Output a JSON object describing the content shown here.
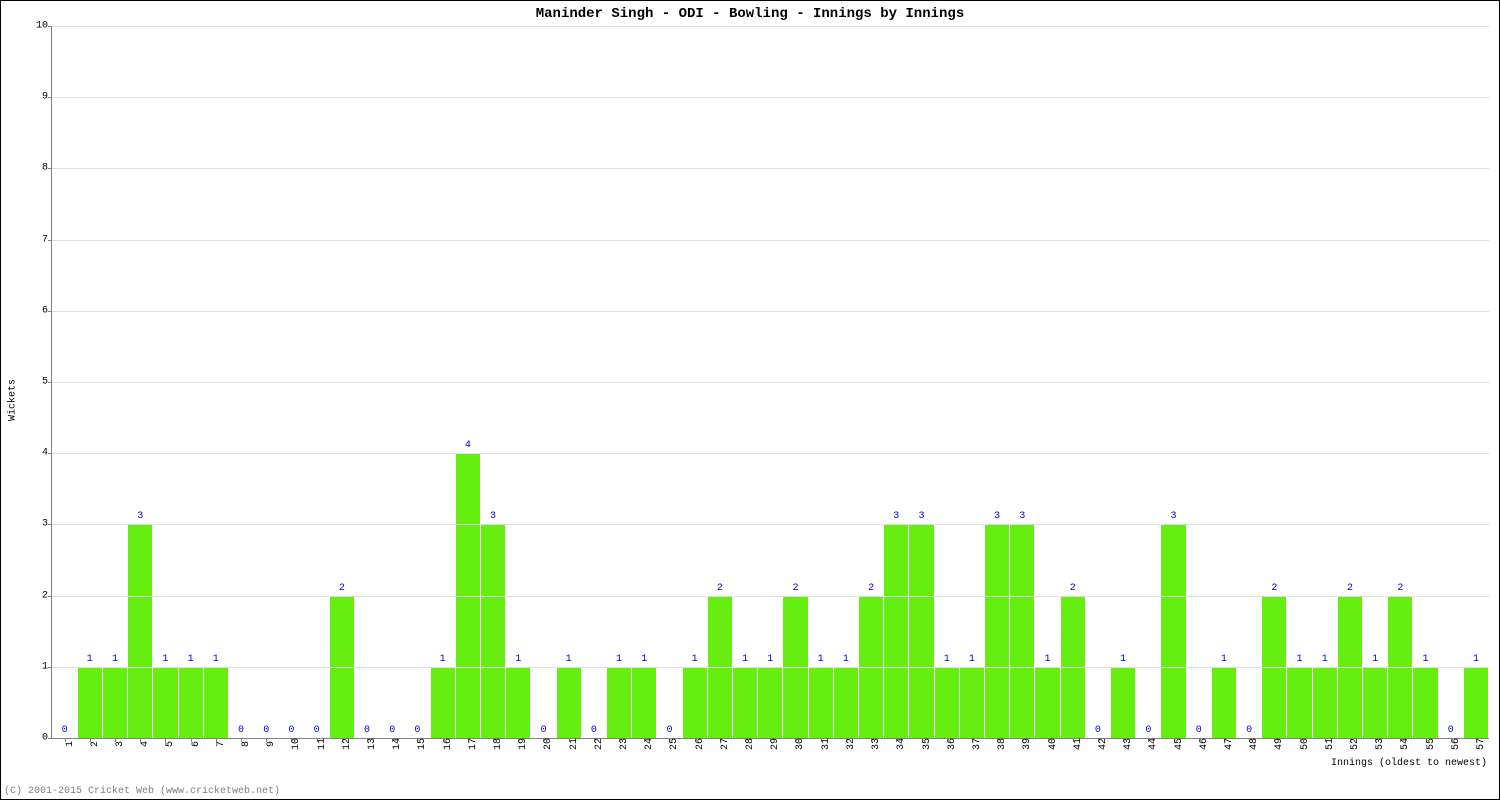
{
  "chart": {
    "type": "bar",
    "title": "Maninder Singh - ODI - Bowling - Innings by Innings",
    "title_fontsize": 14,
    "xlabel": "Innings (oldest to newest)",
    "ylabel": "Wickets",
    "label_fontsize": 10,
    "tick_fontsize": 10,
    "ylim": [
      0,
      10
    ],
    "ytick_step": 1,
    "background_color": "#ffffff",
    "grid_color": "#dddddd",
    "axis_color": "#808080",
    "bar_color": "#66ee11",
    "value_label_color": "#0000cc",
    "bar_width_ratio": 0.96,
    "categories": [
      "1",
      "2",
      "3",
      "4",
      "5",
      "6",
      "7",
      "8",
      "9",
      "10",
      "11",
      "12",
      "13",
      "14",
      "15",
      "16",
      "17",
      "18",
      "19",
      "20",
      "21",
      "22",
      "23",
      "24",
      "25",
      "26",
      "27",
      "28",
      "29",
      "30",
      "31",
      "32",
      "33",
      "34",
      "35",
      "36",
      "37",
      "38",
      "39",
      "40",
      "41",
      "42",
      "43",
      "44",
      "45",
      "46",
      "47",
      "48",
      "49",
      "50",
      "51",
      "52",
      "53",
      "54",
      "55",
      "56",
      "57"
    ],
    "values": [
      0,
      1,
      1,
      3,
      1,
      1,
      1,
      0,
      0,
      0,
      0,
      2,
      0,
      0,
      0,
      1,
      4,
      3,
      1,
      0,
      1,
      0,
      1,
      1,
      0,
      1,
      2,
      1,
      1,
      2,
      1,
      1,
      2,
      3,
      3,
      1,
      1,
      3,
      3,
      1,
      2,
      0,
      1,
      0,
      3,
      0,
      1,
      0,
      2,
      1,
      1,
      2,
      1,
      2,
      1,
      0,
      1
    ]
  },
  "copyright": "(C) 2001-2015 Cricket Web (www.cricketweb.net)"
}
